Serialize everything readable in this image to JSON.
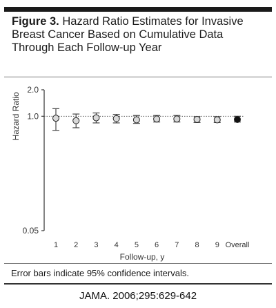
{
  "figure": {
    "label": "Figure 3.",
    "title": "Hazard Ratio Estimates for Invasive Breast Cancer Based on Cumulative Data Through Each Follow-up Year",
    "footnote": "Error bars indicate 95% confidence intervals."
  },
  "citation": "JAMA. 2006;295:629-642",
  "chart_data": {
    "type": "scatter",
    "title": "",
    "xlabel": "Follow-up, y",
    "ylabel": "Hazard Ratio",
    "yscale": "log",
    "ylim": [
      0.05,
      2.0
    ],
    "yticks": [
      "0.05",
      "1.0",
      "2.0"
    ],
    "reference_line": 1.0,
    "categories": [
      "1",
      "2",
      "3",
      "4",
      "5",
      "6",
      "7",
      "8",
      "9",
      "Overall"
    ],
    "series": [
      {
        "values": [
          0.95,
          0.89,
          0.96,
          0.94,
          0.91,
          0.93,
          0.93,
          0.92,
          0.91,
          0.92
        ],
        "ci_lower": [
          0.69,
          0.74,
          0.84,
          0.84,
          0.83,
          0.86,
          0.86,
          0.85,
          0.85,
          0.86
        ],
        "ci_upper": [
          1.22,
          1.06,
          1.09,
          1.05,
          1.02,
          1.02,
          1.02,
          0.99,
          0.99,
          1.0
        ]
      }
    ],
    "overall_category": "Overall",
    "colors": {
      "point_open": "#d9d9d9",
      "point_overall": "#111111",
      "line": "#444444"
    }
  }
}
